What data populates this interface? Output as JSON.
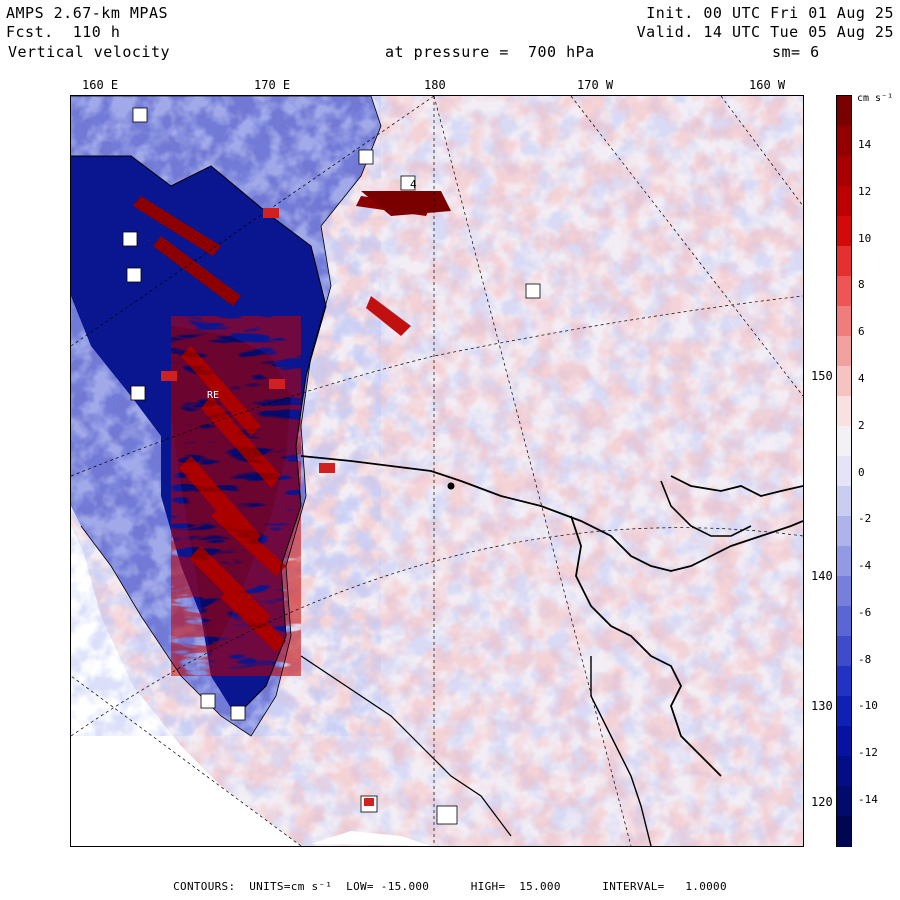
{
  "header": {
    "model": "AMPS 2.67-km MPAS",
    "forecast": "Fcst.  110 h",
    "field": "Vertical velocity",
    "init": "Init. 00 UTC Fri 01 Aug 25",
    "valid": "Valid. 14 UTC Tue 05 Aug 25",
    "level": "at pressure =  700 hPa",
    "smoothing": "sm= 6"
  },
  "longitude_labels": [
    "160 E",
    "170 E",
    "180",
    "170 W",
    "160 W"
  ],
  "latitude_labels": [
    "150 W",
    "140 W",
    "130 W",
    "120 W"
  ],
  "colorbar": {
    "units": "cm s⁻¹",
    "ticks": [
      "14",
      "12",
      "10",
      "8",
      "6",
      "4",
      "2",
      "0",
      "-2",
      "-4",
      "-6",
      "-8",
      "-10",
      "-12",
      "-14"
    ],
    "colors": [
      "#7a0000",
      "#930000",
      "#a80000",
      "#bd0000",
      "#d20a0a",
      "#e43030",
      "#ee5555",
      "#f07c7c",
      "#f2a0a0",
      "#f6c3c3",
      "#fae1e1",
      "#f3f0f6",
      "#e4e4f6",
      "#c9cdf0",
      "#aeb4ea",
      "#929ae3",
      "#7680dc",
      "#5a66d4",
      "#3e4ccc",
      "#2233c4",
      "#0f20b5",
      "#0713a0",
      "#040c86",
      "#020a6c",
      "#010650"
    ]
  },
  "footer": "CONTOURS:  UNITS=cm s⁻¹  LOW= -15.000      HIGH=  15.000      INTERVAL=   1.0000",
  "map_labels": {
    "box_label": "4",
    "station": "RE"
  }
}
